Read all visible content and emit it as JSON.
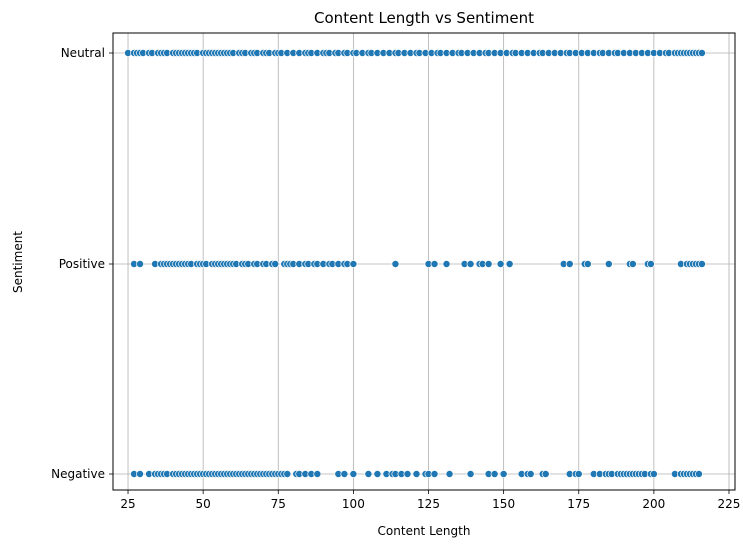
{
  "chart_data": {
    "type": "scatter",
    "title": "Content Length vs Sentiment",
    "xlabel": "Content Length",
    "ylabel": "Sentiment",
    "xlim": [
      20,
      227
    ],
    "xticks": [
      25,
      50,
      75,
      100,
      125,
      150,
      175,
      200,
      225
    ],
    "categories": [
      "Negative",
      "Positive",
      "Neutral"
    ],
    "grid": true,
    "marker_color": "#1f77b4",
    "series": [
      {
        "category": "Neutral",
        "x": [
          25,
          27,
          28,
          29,
          30,
          32,
          33,
          35,
          36,
          37,
          38,
          40,
          41,
          42,
          43,
          44,
          45,
          46,
          47,
          48,
          50,
          51,
          52,
          53,
          54,
          55,
          56,
          57,
          58,
          59,
          60,
          62,
          63,
          64,
          66,
          67,
          68,
          70,
          71,
          72,
          74,
          75,
          76,
          78,
          80,
          82,
          84,
          85,
          86,
          88,
          90,
          91,
          92,
          94,
          95,
          97,
          98,
          100,
          101,
          103,
          105,
          106,
          108,
          110,
          112,
          114,
          115,
          117,
          119,
          121,
          122,
          124,
          126,
          128,
          129,
          131,
          133,
          135,
          136,
          138,
          140,
          142,
          144,
          145,
          147,
          149,
          151,
          153,
          154,
          156,
          158,
          160,
          162,
          163,
          165,
          167,
          169,
          171,
          172,
          174,
          176,
          178,
          180,
          182,
          183,
          185,
          187,
          188,
          190,
          192,
          194,
          196,
          198,
          200,
          202,
          204,
          205,
          207,
          208,
          209,
          210,
          211,
          212,
          213,
          214,
          215,
          216
        ]
      },
      {
        "category": "Positive",
        "x": [
          27,
          29,
          34,
          36,
          37,
          38,
          39,
          40,
          41,
          42,
          43,
          44,
          45,
          46,
          48,
          49,
          50,
          51,
          53,
          54,
          55,
          56,
          57,
          58,
          59,
          60,
          61,
          63,
          64,
          65,
          67,
          68,
          70,
          71,
          73,
          74,
          77,
          78,
          79,
          80,
          82,
          84,
          85,
          87,
          88,
          90,
          92,
          93,
          95,
          97,
          98,
          100,
          114,
          125,
          127,
          131,
          137,
          139,
          142,
          143,
          145,
          149,
          152,
          170,
          172,
          177,
          178,
          185,
          192,
          193,
          198,
          199,
          209,
          211,
          212,
          213,
          214,
          215,
          216
        ]
      },
      {
        "category": "Negative",
        "x": [
          27,
          29,
          32,
          34,
          35,
          36,
          37,
          38,
          40,
          41,
          42,
          43,
          44,
          45,
          46,
          47,
          48,
          49,
          50,
          51,
          52,
          53,
          54,
          55,
          56,
          57,
          58,
          59,
          60,
          61,
          62,
          63,
          64,
          65,
          66,
          67,
          68,
          69,
          70,
          71,
          72,
          73,
          74,
          75,
          76,
          77,
          78,
          81,
          82,
          84,
          86,
          88,
          95,
          97,
          100,
          105,
          108,
          111,
          113,
          114,
          116,
          118,
          121,
          124,
          125,
          127,
          132,
          139,
          145,
          147,
          150,
          156,
          158,
          159,
          163,
          164,
          172,
          174,
          175,
          180,
          182,
          184,
          185,
          186,
          188,
          189,
          190,
          191,
          192,
          193,
          194,
          195,
          196,
          197,
          199,
          200,
          207,
          209,
          210,
          211,
          212,
          213,
          214,
          215
        ]
      }
    ]
  }
}
